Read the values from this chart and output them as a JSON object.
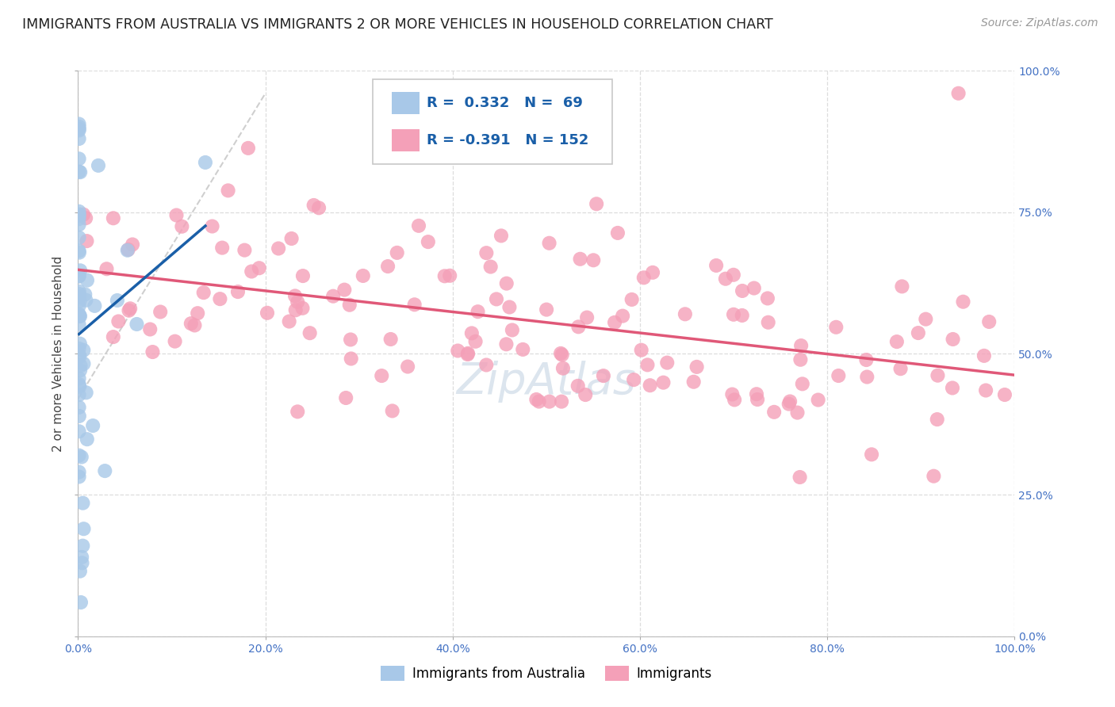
{
  "title": "IMMIGRANTS FROM AUSTRALIA VS IMMIGRANTS 2 OR MORE VEHICLES IN HOUSEHOLD CORRELATION CHART",
  "source": "Source: ZipAtlas.com",
  "ylabel": "2 or more Vehicles in Household",
  "blue_R": 0.332,
  "blue_N": 69,
  "pink_R": -0.391,
  "pink_N": 152,
  "blue_color": "#a8c8e8",
  "pink_color": "#f4a0b8",
  "blue_line_color": "#1a5fa8",
  "pink_line_color": "#e05878",
  "diagonal_color": "#bbbbbb",
  "background_color": "#ffffff",
  "grid_color": "#dddddd",
  "title_color": "#222222",
  "source_color": "#999999",
  "legend_text_color": "#1a5fa8",
  "title_fontsize": 12.5,
  "source_fontsize": 10,
  "axis_label_fontsize": 11,
  "tick_fontsize": 10,
  "legend_fontsize": 13,
  "watermark_color": "#c0d0e0",
  "watermark_fontsize": 40,
  "watermark_text": "ZipAtlas",
  "legend_label_blue": "Immigrants from Australia",
  "legend_label_pink": "Immigrants",
  "right_tick_color": "#4472c4",
  "bottom_tick_color": "#4472c4",
  "x_tick_positions": [
    0.0,
    0.2,
    0.4,
    0.6,
    0.8,
    1.0
  ],
  "y_tick_positions": [
    0.0,
    0.25,
    0.5,
    0.75,
    1.0
  ],
  "xlim": [
    0.0,
    1.0
  ],
  "ylim": [
    0.0,
    1.0
  ]
}
